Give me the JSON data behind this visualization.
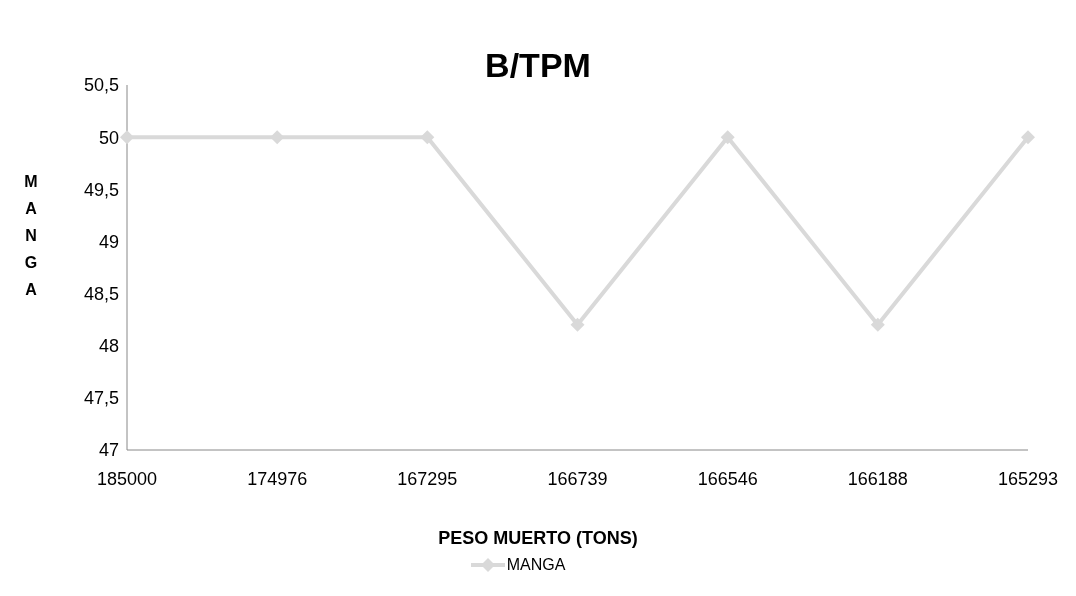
{
  "chart_data": {
    "type": "line",
    "title": "B/TPM",
    "xlabel": "PESO MUERTO (TONS)",
    "ylabel": "MANGA",
    "categories": [
      "185000",
      "174976",
      "167295",
      "166739",
      "166546",
      "166188",
      "165293"
    ],
    "series": [
      {
        "name": "MANGA",
        "color": "#d9d9d9",
        "values": [
          50,
          50,
          50,
          48.2,
          50,
          48.2,
          50
        ]
      }
    ],
    "ylim": [
      47,
      50.5
    ],
    "yticks": [
      47,
      {
        "value": 47.5,
        "label": "47,5"
      },
      48,
      {
        "value": 48.5,
        "label": "48,5"
      },
      49,
      {
        "value": 49.5,
        "label": "49,5"
      },
      50,
      {
        "value": 50.5,
        "label": "50,5"
      }
    ],
    "grid": false,
    "legend": "bottom",
    "marker": "diamond",
    "line_style": "solid"
  }
}
